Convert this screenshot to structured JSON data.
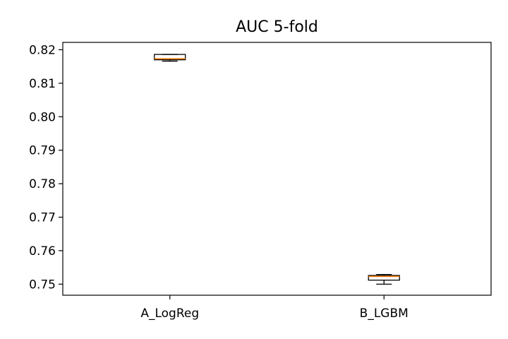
{
  "chart_data": {
    "type": "box",
    "title": "AUC 5-fold",
    "xlabel": "",
    "ylabel": "",
    "categories": [
      "A_LogReg",
      "B_LGBM"
    ],
    "boxes": [
      {
        "name": "A_LogReg",
        "whislo": 0.8166,
        "q1": 0.817,
        "med": 0.8173,
        "q3": 0.8186,
        "whishi": 0.8186
      },
      {
        "name": "B_LGBM",
        "whislo": 0.75,
        "q1": 0.7512,
        "med": 0.7523,
        "q3": 0.7526,
        "whishi": 0.7529
      }
    ],
    "ylim": [
      0.7467,
      0.8222
    ],
    "yticks": [
      0.75,
      0.76,
      0.77,
      0.78,
      0.79,
      0.8,
      0.81,
      0.82
    ],
    "ytick_labels": [
      "0.75",
      "0.76",
      "0.77",
      "0.78",
      "0.79",
      "0.80",
      "0.81",
      "0.82"
    ],
    "grid": false,
    "legend": "none",
    "colors": {
      "box": "#000000",
      "median": "#ff7f0e"
    }
  }
}
